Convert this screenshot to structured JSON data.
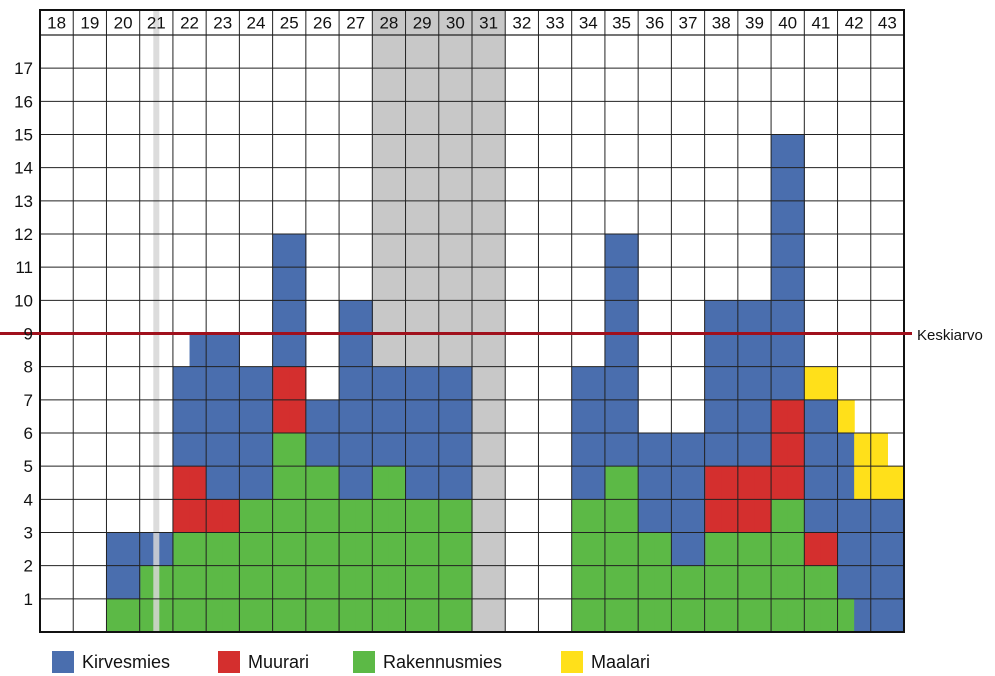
{
  "chart_data": {
    "type": "bar",
    "stacked": true,
    "grid": true,
    "x_unit": "half-week",
    "week_labels": [
      "18",
      "19",
      "20",
      "21",
      "22",
      "23",
      "24",
      "25",
      "26",
      "27",
      "28",
      "29",
      "30",
      "31",
      "32",
      "33",
      "34",
      "35",
      "36",
      "37",
      "38",
      "39",
      "40",
      "41",
      "42",
      "43"
    ],
    "y_ticks": [
      "1",
      "2",
      "3",
      "4",
      "5",
      "6",
      "7",
      "8",
      "9",
      "10",
      "11",
      "12",
      "13",
      "14",
      "15",
      "16",
      "17"
    ],
    "ylim": [
      0,
      18
    ],
    "reference_line": {
      "label": "Keskiarvo",
      "value": 9,
      "color": "#a0101c"
    },
    "shaded_weeks": [
      {
        "weeks": [
          "28",
          "29",
          "30",
          "31"
        ],
        "color": "#c8c8c8"
      }
    ],
    "thin_marker_at_week": "21",
    "series": [
      {
        "name": "Rakennusmies",
        "color": "#5cb946",
        "values": [
          0,
          0,
          0,
          0,
          1,
          1,
          2,
          2,
          3,
          3,
          3,
          3,
          4,
          4,
          6,
          6,
          5,
          5,
          4,
          4,
          5,
          5,
          4,
          4,
          4,
          4,
          0,
          0,
          0,
          0,
          0,
          0,
          4,
          4,
          5,
          5,
          3,
          3,
          2,
          2,
          3,
          3,
          3,
          3,
          4,
          4,
          2,
          2,
          1,
          0,
          0,
          0
        ]
      },
      {
        "name": "Muurari",
        "color": "#d42f2e",
        "values": [
          0,
          0,
          0,
          0,
          0,
          0,
          0,
          0,
          2,
          2,
          1,
          1,
          0,
          0,
          2,
          2,
          0,
          0,
          0,
          0,
          0,
          0,
          0,
          0,
          0,
          0,
          0,
          0,
          0,
          0,
          0,
          0,
          0,
          0,
          0,
          0,
          0,
          0,
          0,
          0,
          2,
          2,
          2,
          2,
          3,
          3,
          1,
          1,
          0,
          0,
          0,
          0
        ]
      },
      {
        "name": "Kirvesmies",
        "color": "#4a6eae",
        "values": [
          0,
          0,
          0,
          0,
          2,
          2,
          1,
          1,
          3,
          4,
          5,
          5,
          4,
          4,
          4,
          4,
          2,
          2,
          6,
          6,
          3,
          3,
          4,
          4,
          4,
          4,
          0,
          0,
          0,
          0,
          0,
          0,
          4,
          4,
          7,
          7,
          3,
          3,
          4,
          4,
          5,
          5,
          5,
          5,
          8,
          8,
          4,
          4,
          5,
          4,
          4,
          4
        ]
      },
      {
        "name": "Maalari",
        "color": "#ffe01a",
        "values": [
          0,
          0,
          0,
          0,
          0,
          0,
          0,
          0,
          0,
          0,
          0,
          0,
          0,
          0,
          0,
          0,
          0,
          0,
          0,
          0,
          0,
          0,
          0,
          0,
          0,
          0,
          0,
          0,
          0,
          0,
          0,
          0,
          0,
          0,
          0,
          0,
          0,
          0,
          0,
          0,
          0,
          0,
          0,
          0,
          0,
          0,
          1,
          1,
          1,
          2,
          2,
          1
        ]
      }
    ]
  },
  "legend": [
    {
      "name": "Kirvesmies",
      "color": "#4a6eae"
    },
    {
      "name": "Muurari",
      "color": "#d42f2e"
    },
    {
      "name": "Rakennusmies",
      "color": "#5cb946"
    },
    {
      "name": "Maalari",
      "color": "#ffe01a"
    }
  ],
  "reference_label": "Keskiarvo"
}
